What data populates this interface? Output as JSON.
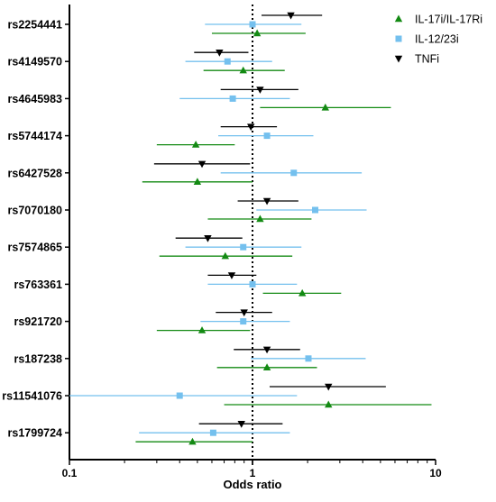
{
  "chart_data": {
    "type": "forest",
    "xlabel": "Odds ratio",
    "xscale": "log",
    "xlim": [
      0.1,
      10
    ],
    "x_ticks": [
      "0.1",
      "1",
      "10"
    ],
    "reference_line": 1,
    "categories": [
      "rs2254441",
      "rs4149570",
      "rs4645983",
      "rs5744174",
      "rs6427528",
      "rs7070180",
      "rs7574865",
      "rs763361",
      "rs921720",
      "rs187238",
      "rs11541076",
      "rs1799724"
    ],
    "series": [
      {
        "name": "TNFi",
        "color": "#000000",
        "marker": "triangle-down",
        "or": [
          1.62,
          0.66,
          1.1,
          0.98,
          0.53,
          1.2,
          0.57,
          0.77,
          0.9,
          1.2,
          2.6,
          0.87
        ],
        "lower": [
          1.12,
          0.48,
          0.67,
          0.67,
          0.29,
          0.83,
          0.38,
          0.57,
          0.63,
          0.79,
          1.24,
          0.51
        ],
        "upper": [
          2.4,
          0.95,
          1.78,
          1.36,
          0.97,
          1.78,
          0.88,
          1.05,
          1.28,
          1.82,
          5.35,
          1.46
        ]
      },
      {
        "name": "IL-12/23i",
        "color": "#74c0ee",
        "marker": "square",
        "or": [
          1.0,
          0.73,
          0.78,
          1.2,
          1.68,
          2.2,
          0.89,
          1.0,
          0.89,
          2.02,
          0.4,
          0.61
        ],
        "lower": [
          0.55,
          0.43,
          0.4,
          0.65,
          0.67,
          1.05,
          0.43,
          0.57,
          0.52,
          0.98,
          0.1,
          0.24
        ],
        "upper": [
          1.85,
          1.28,
          1.6,
          2.15,
          3.95,
          4.2,
          1.85,
          1.75,
          1.6,
          4.15,
          1.75,
          1.6
        ]
      },
      {
        "name": "IL-17i/IL-17Ri",
        "color": "#138a13",
        "marker": "triangle-up",
        "or": [
          1.06,
          0.89,
          2.5,
          0.49,
          0.5,
          1.1,
          0.71,
          1.87,
          0.53,
          1.2,
          2.6,
          0.47
        ],
        "lower": [
          0.6,
          0.54,
          1.1,
          0.3,
          0.25,
          0.57,
          0.31,
          1.14,
          0.3,
          0.64,
          0.7,
          0.23
        ],
        "upper": [
          1.95,
          1.5,
          5.7,
          0.8,
          1.0,
          2.1,
          1.65,
          3.05,
          0.97,
          2.25,
          9.5,
          1.0
        ]
      }
    ],
    "legend": {
      "position": "top-right",
      "order": [
        "IL-17i/IL-17Ri",
        "IL-12/23i",
        "TNFi"
      ]
    }
  }
}
